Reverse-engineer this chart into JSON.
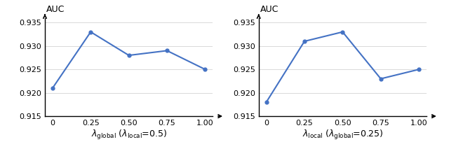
{
  "left": {
    "x": [
      0,
      0.25,
      0.5,
      0.75,
      1.0
    ],
    "y": [
      0.921,
      0.933,
      0.928,
      0.929,
      0.925
    ],
    "xlabel": "$\\lambda_{\\mathrm{global}}$ ($\\lambda_{\\mathrm{local}}$=0.5)",
    "ylabel": "AUC",
    "ylim": [
      0.915,
      0.936
    ],
    "yticks": [
      0.915,
      0.92,
      0.925,
      0.93,
      0.935
    ]
  },
  "right": {
    "x": [
      0,
      0.25,
      0.5,
      0.75,
      1.0
    ],
    "y": [
      0.918,
      0.931,
      0.933,
      0.923,
      0.925
    ],
    "xlabel": "$\\lambda_{\\mathrm{local}}$ ($\\lambda_{\\mathrm{global}}$=0.25)",
    "ylabel": "AUC",
    "ylim": [
      0.915,
      0.936
    ],
    "yticks": [
      0.915,
      0.92,
      0.925,
      0.93,
      0.935
    ]
  },
  "line_color": "#4472C4",
  "line_width": 1.5,
  "marker": "o",
  "marker_size": 3.5,
  "xticks": [
    0,
    0.25,
    0.5,
    0.75,
    1.0
  ],
  "xticklabels": [
    "0",
    "0.25",
    "0.50",
    "0.75",
    "1.00"
  ],
  "tick_fontsize": 8,
  "xlabel_fontsize": 9,
  "ylabel_fontsize": 9
}
